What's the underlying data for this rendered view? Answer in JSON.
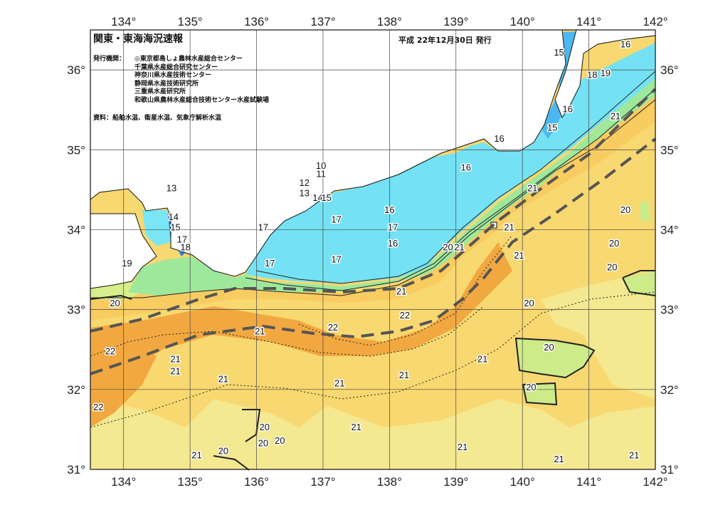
{
  "header": {
    "title": "関東・東海海況速報",
    "issue_date": "平成 22年12月30日 発行"
  },
  "issuers": {
    "label": "発行機関：",
    "list": [
      "◎東京都島しょ農林水産総合センター",
      "千葉県水産総合研究センター",
      "神奈川県水産技術センター",
      "静岡県水産技術研究所",
      "三重県水産研究所",
      "和歌山県農林水産総合技術センター水産試験場"
    ]
  },
  "source": "資料：船舶水温、衛星水温、気象庁解析水温",
  "axes": {
    "lon_ticks": [
      "134°",
      "135°",
      "136°",
      "137°",
      "138°",
      "139°",
      "140°",
      "141°",
      "142°"
    ],
    "lat_ticks": [
      "36°",
      "35°",
      "34°",
      "33°",
      "32°",
      "31°"
    ]
  },
  "map_data": {
    "lon_range": [
      133.5,
      142
    ],
    "lat_range": [
      31,
      36.5
    ],
    "colors": {
      "t10": "#6a1fa8",
      "t12": "#2a4fcf",
      "t14": "#2f7de8",
      "t15": "#3f9fee",
      "t16": "#5fd2f2",
      "t17": "#7ae6f5",
      "t18": "#8ff0c8",
      "t19": "#a8e87a",
      "t20": "#e8f58a",
      "t21": "#f8d870",
      "t22": "#f2a840",
      "land": "#ffffff"
    },
    "contour_labels": [
      {
        "text": "16",
        "lon": 141.55,
        "lat": 36.28
      },
      {
        "text": "15",
        "lon": 140.55,
        "lat": 36.18
      },
      {
        "text": "18",
        "lon": 141.05,
        "lat": 35.9
      },
      {
        "text": "19",
        "lon": 141.25,
        "lat": 35.92
      },
      {
        "text": "16",
        "lon": 140.68,
        "lat": 35.47
      },
      {
        "text": "15",
        "lon": 140.45,
        "lat": 35.24
      },
      {
        "text": "21",
        "lon": 141.4,
        "lat": 35.38
      },
      {
        "text": "16",
        "lon": 139.65,
        "lat": 35.1
      },
      {
        "text": "16",
        "lon": 139.15,
        "lat": 34.74
      },
      {
        "text": "10",
        "lon": 136.97,
        "lat": 34.76
      },
      {
        "text": "11",
        "lon": 136.97,
        "lat": 34.66
      },
      {
        "text": "12",
        "lon": 136.72,
        "lat": 34.55
      },
      {
        "text": "13",
        "lon": 136.72,
        "lat": 34.42
      },
      {
        "text": "14",
        "lon": 136.92,
        "lat": 34.36
      },
      {
        "text": "15",
        "lon": 137.05,
        "lat": 34.36
      },
      {
        "text": "16",
        "lon": 138.0,
        "lat": 34.21
      },
      {
        "text": "21",
        "lon": 140.15,
        "lat": 34.48
      },
      {
        "text": "20",
        "lon": 141.55,
        "lat": 34.21
      },
      {
        "text": "13",
        "lon": 134.72,
        "lat": 34.48
      },
      {
        "text": "14",
        "lon": 134.75,
        "lat": 34.12
      },
      {
        "text": "15",
        "lon": 134.78,
        "lat": 33.99
      },
      {
        "text": "17",
        "lon": 136.1,
        "lat": 33.99
      },
      {
        "text": "17",
        "lon": 137.2,
        "lat": 34.09
      },
      {
        "text": "17",
        "lon": 138.05,
        "lat": 33.99
      },
      {
        "text": "16",
        "lon": 138.05,
        "lat": 33.79
      },
      {
        "text": "21",
        "lon": 139.8,
        "lat": 33.99
      },
      {
        "text": "20",
        "lon": 138.88,
        "lat": 33.74
      },
      {
        "text": "21",
        "lon": 139.05,
        "lat": 33.74
      },
      {
        "text": "17",
        "lon": 134.88,
        "lat": 33.84
      },
      {
        "text": "18",
        "lon": 134.93,
        "lat": 33.74
      },
      {
        "text": "19",
        "lon": 134.05,
        "lat": 33.54
      },
      {
        "text": "17",
        "lon": 136.2,
        "lat": 33.54
      },
      {
        "text": "17",
        "lon": 137.2,
        "lat": 33.59
      },
      {
        "text": "21",
        "lon": 139.95,
        "lat": 33.64
      },
      {
        "text": "20",
        "lon": 141.38,
        "lat": 33.79
      },
      {
        "text": "20",
        "lon": 141.35,
        "lat": 33.49
      },
      {
        "text": "20",
        "lon": 133.87,
        "lat": 33.04
      },
      {
        "text": "21",
        "lon": 138.18,
        "lat": 33.19
      },
      {
        "text": "20",
        "lon": 140.1,
        "lat": 33.04
      },
      {
        "text": "22",
        "lon": 137.15,
        "lat": 32.74
      },
      {
        "text": "22",
        "lon": 138.23,
        "lat": 32.89
      },
      {
        "text": "21",
        "lon": 136.05,
        "lat": 32.69
      },
      {
        "text": "20",
        "lon": 140.4,
        "lat": 32.49
      },
      {
        "text": "22",
        "lon": 133.8,
        "lat": 32.44
      },
      {
        "text": "21",
        "lon": 134.78,
        "lat": 32.34
      },
      {
        "text": "21",
        "lon": 134.78,
        "lat": 32.19
      },
      {
        "text": "21",
        "lon": 139.4,
        "lat": 32.34
      },
      {
        "text": "21",
        "lon": 135.5,
        "lat": 32.09
      },
      {
        "text": "21",
        "lon": 137.25,
        "lat": 32.04
      },
      {
        "text": "21",
        "lon": 138.22,
        "lat": 32.14
      },
      {
        "text": "20",
        "lon": 140.13,
        "lat": 31.99
      },
      {
        "text": "22",
        "lon": 133.62,
        "lat": 31.74
      },
      {
        "text": "20",
        "lon": 136.12,
        "lat": 31.49
      },
      {
        "text": "21",
        "lon": 137.5,
        "lat": 31.49
      },
      {
        "text": "20",
        "lon": 136.1,
        "lat": 31.29
      },
      {
        "text": "20",
        "lon": 136.35,
        "lat": 31.32
      },
      {
        "text": "21",
        "lon": 139.1,
        "lat": 31.24
      },
      {
        "text": "20",
        "lon": 135.5,
        "lat": 31.19
      },
      {
        "text": "21",
        "lon": 135.1,
        "lat": 31.14
      },
      {
        "text": "21",
        "lon": 140.55,
        "lat": 31.09
      },
      {
        "text": "21",
        "lon": 141.68,
        "lat": 31.14
      }
    ]
  }
}
